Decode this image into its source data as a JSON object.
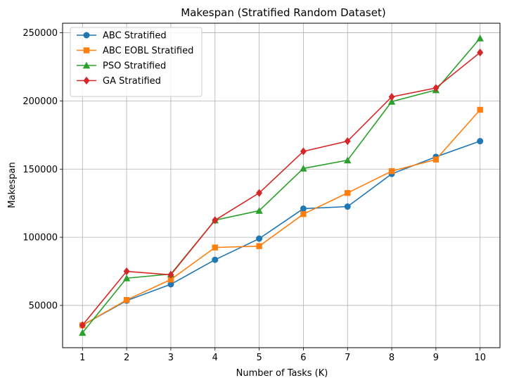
{
  "chart_data": {
    "type": "line",
    "title": "Makespan (Stratified Random Dataset)",
    "xlabel": "Number of Tasks (K)",
    "ylabel": "Makespan",
    "x": [
      1,
      2,
      3,
      4,
      5,
      6,
      7,
      8,
      9,
      10
    ],
    "xticks": [
      "1",
      "2",
      "3",
      "4",
      "5",
      "6",
      "7",
      "8",
      "9",
      "10"
    ],
    "yticks": [
      50000,
      100000,
      150000,
      200000,
      250000
    ],
    "ytick_labels": [
      "50000",
      "100000",
      "150000",
      "200000",
      "250000"
    ],
    "xlim": [
      0.55,
      10.45
    ],
    "ylim": [
      19000,
      257000
    ],
    "grid": true,
    "legend_position": "top-left",
    "series": [
      {
        "name": "ABC Stratified",
        "color": "#1f77b4",
        "marker": "circle",
        "values": [
          35500,
          53500,
          65500,
          83500,
          99000,
          121000,
          122500,
          146500,
          159000,
          170500
        ]
      },
      {
        "name": "ABC EOBL Stratified",
        "color": "#ff7f0e",
        "marker": "square",
        "values": [
          35500,
          54000,
          69000,
          92500,
          93500,
          117000,
          132500,
          148500,
          157000,
          193500
        ]
      },
      {
        "name": "PSO Stratified",
        "color": "#2ca02c",
        "marker": "triangle",
        "values": [
          30000,
          70000,
          73000,
          112500,
          119500,
          150500,
          156500,
          199500,
          208000,
          246000
        ]
      },
      {
        "name": "GA Stratified",
        "color": "#d62728",
        "marker": "diamond",
        "values": [
          35500,
          75000,
          72500,
          112500,
          132500,
          163000,
          170500,
          203000,
          209500,
          235500
        ]
      }
    ]
  }
}
